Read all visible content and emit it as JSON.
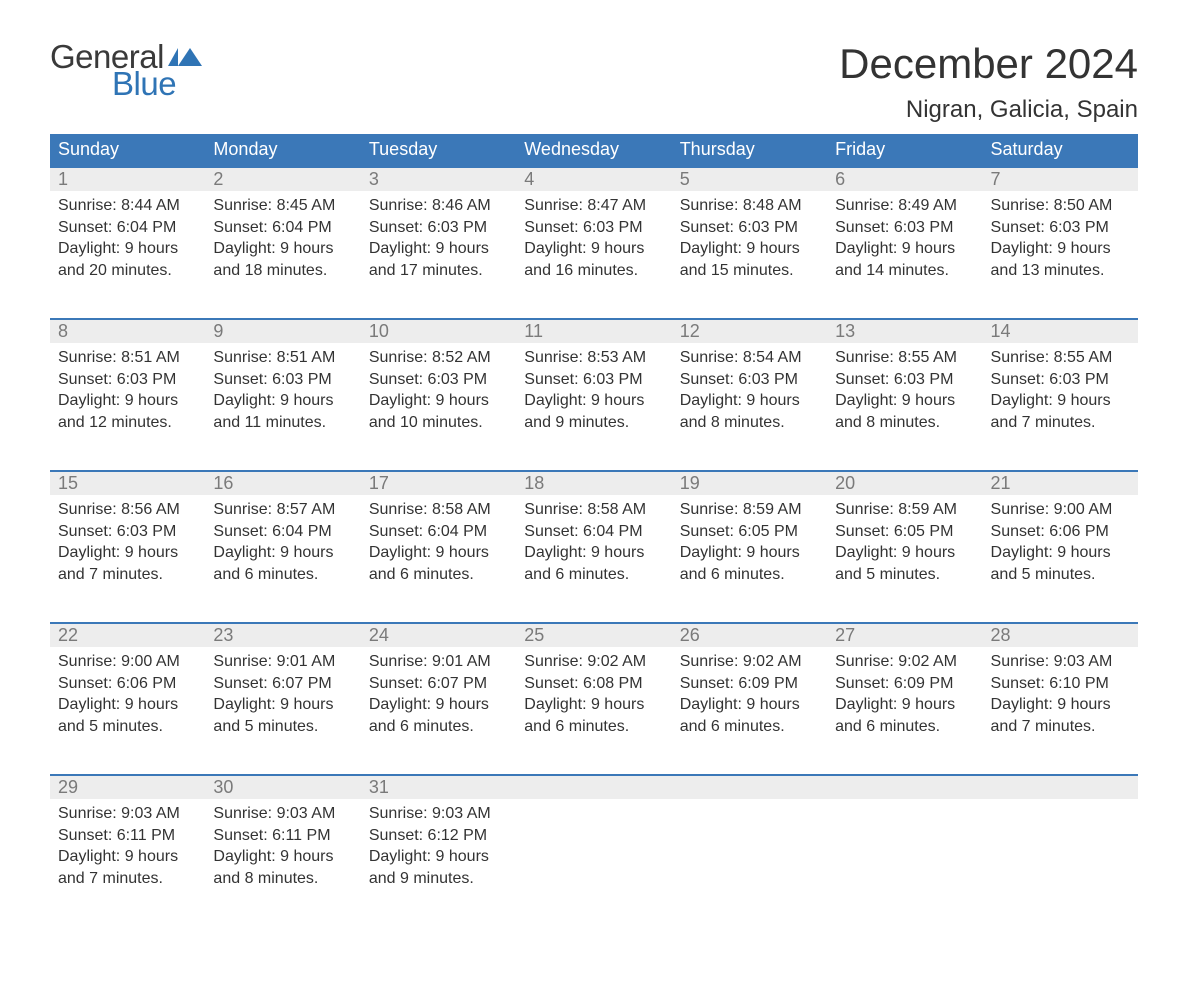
{
  "logo": {
    "general": "General",
    "blue": "Blue",
    "flag_color": "#2f74b5"
  },
  "title": {
    "month": "December 2024",
    "location": "Nigran, Galicia, Spain"
  },
  "colors": {
    "header_bg": "#3b78b8",
    "header_text": "#ffffff",
    "daynum_bg": "#ededed",
    "daynum_text": "#7a7a7a",
    "body_text": "#333333",
    "row_border": "#3b78b8",
    "page_bg": "#ffffff"
  },
  "weekdays": [
    "Sunday",
    "Monday",
    "Tuesday",
    "Wednesday",
    "Thursday",
    "Friday",
    "Saturday"
  ],
  "weeks": [
    [
      {
        "num": "1",
        "sunrise": "Sunrise: 8:44 AM",
        "sunset": "Sunset: 6:04 PM",
        "day1": "Daylight: 9 hours",
        "day2": "and 20 minutes."
      },
      {
        "num": "2",
        "sunrise": "Sunrise: 8:45 AM",
        "sunset": "Sunset: 6:04 PM",
        "day1": "Daylight: 9 hours",
        "day2": "and 18 minutes."
      },
      {
        "num": "3",
        "sunrise": "Sunrise: 8:46 AM",
        "sunset": "Sunset: 6:03 PM",
        "day1": "Daylight: 9 hours",
        "day2": "and 17 minutes."
      },
      {
        "num": "4",
        "sunrise": "Sunrise: 8:47 AM",
        "sunset": "Sunset: 6:03 PM",
        "day1": "Daylight: 9 hours",
        "day2": "and 16 minutes."
      },
      {
        "num": "5",
        "sunrise": "Sunrise: 8:48 AM",
        "sunset": "Sunset: 6:03 PM",
        "day1": "Daylight: 9 hours",
        "day2": "and 15 minutes."
      },
      {
        "num": "6",
        "sunrise": "Sunrise: 8:49 AM",
        "sunset": "Sunset: 6:03 PM",
        "day1": "Daylight: 9 hours",
        "day2": "and 14 minutes."
      },
      {
        "num": "7",
        "sunrise": "Sunrise: 8:50 AM",
        "sunset": "Sunset: 6:03 PM",
        "day1": "Daylight: 9 hours",
        "day2": "and 13 minutes."
      }
    ],
    [
      {
        "num": "8",
        "sunrise": "Sunrise: 8:51 AM",
        "sunset": "Sunset: 6:03 PM",
        "day1": "Daylight: 9 hours",
        "day2": "and 12 minutes."
      },
      {
        "num": "9",
        "sunrise": "Sunrise: 8:51 AM",
        "sunset": "Sunset: 6:03 PM",
        "day1": "Daylight: 9 hours",
        "day2": "and 11 minutes."
      },
      {
        "num": "10",
        "sunrise": "Sunrise: 8:52 AM",
        "sunset": "Sunset: 6:03 PM",
        "day1": "Daylight: 9 hours",
        "day2": "and 10 minutes."
      },
      {
        "num": "11",
        "sunrise": "Sunrise: 8:53 AM",
        "sunset": "Sunset: 6:03 PM",
        "day1": "Daylight: 9 hours",
        "day2": "and 9 minutes."
      },
      {
        "num": "12",
        "sunrise": "Sunrise: 8:54 AM",
        "sunset": "Sunset: 6:03 PM",
        "day1": "Daylight: 9 hours",
        "day2": "and 8 minutes."
      },
      {
        "num": "13",
        "sunrise": "Sunrise: 8:55 AM",
        "sunset": "Sunset: 6:03 PM",
        "day1": "Daylight: 9 hours",
        "day2": "and 8 minutes."
      },
      {
        "num": "14",
        "sunrise": "Sunrise: 8:55 AM",
        "sunset": "Sunset: 6:03 PM",
        "day1": "Daylight: 9 hours",
        "day2": "and 7 minutes."
      }
    ],
    [
      {
        "num": "15",
        "sunrise": "Sunrise: 8:56 AM",
        "sunset": "Sunset: 6:03 PM",
        "day1": "Daylight: 9 hours",
        "day2": "and 7 minutes."
      },
      {
        "num": "16",
        "sunrise": "Sunrise: 8:57 AM",
        "sunset": "Sunset: 6:04 PM",
        "day1": "Daylight: 9 hours",
        "day2": "and 6 minutes."
      },
      {
        "num": "17",
        "sunrise": "Sunrise: 8:58 AM",
        "sunset": "Sunset: 6:04 PM",
        "day1": "Daylight: 9 hours",
        "day2": "and 6 minutes."
      },
      {
        "num": "18",
        "sunrise": "Sunrise: 8:58 AM",
        "sunset": "Sunset: 6:04 PM",
        "day1": "Daylight: 9 hours",
        "day2": "and 6 minutes."
      },
      {
        "num": "19",
        "sunrise": "Sunrise: 8:59 AM",
        "sunset": "Sunset: 6:05 PM",
        "day1": "Daylight: 9 hours",
        "day2": "and 6 minutes."
      },
      {
        "num": "20",
        "sunrise": "Sunrise: 8:59 AM",
        "sunset": "Sunset: 6:05 PM",
        "day1": "Daylight: 9 hours",
        "day2": "and 5 minutes."
      },
      {
        "num": "21",
        "sunrise": "Sunrise: 9:00 AM",
        "sunset": "Sunset: 6:06 PM",
        "day1": "Daylight: 9 hours",
        "day2": "and 5 minutes."
      }
    ],
    [
      {
        "num": "22",
        "sunrise": "Sunrise: 9:00 AM",
        "sunset": "Sunset: 6:06 PM",
        "day1": "Daylight: 9 hours",
        "day2": "and 5 minutes."
      },
      {
        "num": "23",
        "sunrise": "Sunrise: 9:01 AM",
        "sunset": "Sunset: 6:07 PM",
        "day1": "Daylight: 9 hours",
        "day2": "and 5 minutes."
      },
      {
        "num": "24",
        "sunrise": "Sunrise: 9:01 AM",
        "sunset": "Sunset: 6:07 PM",
        "day1": "Daylight: 9 hours",
        "day2": "and 6 minutes."
      },
      {
        "num": "25",
        "sunrise": "Sunrise: 9:02 AM",
        "sunset": "Sunset: 6:08 PM",
        "day1": "Daylight: 9 hours",
        "day2": "and 6 minutes."
      },
      {
        "num": "26",
        "sunrise": "Sunrise: 9:02 AM",
        "sunset": "Sunset: 6:09 PM",
        "day1": "Daylight: 9 hours",
        "day2": "and 6 minutes."
      },
      {
        "num": "27",
        "sunrise": "Sunrise: 9:02 AM",
        "sunset": "Sunset: 6:09 PM",
        "day1": "Daylight: 9 hours",
        "day2": "and 6 minutes."
      },
      {
        "num": "28",
        "sunrise": "Sunrise: 9:03 AM",
        "sunset": "Sunset: 6:10 PM",
        "day1": "Daylight: 9 hours",
        "day2": "and 7 minutes."
      }
    ],
    [
      {
        "num": "29",
        "sunrise": "Sunrise: 9:03 AM",
        "sunset": "Sunset: 6:11 PM",
        "day1": "Daylight: 9 hours",
        "day2": "and 7 minutes."
      },
      {
        "num": "30",
        "sunrise": "Sunrise: 9:03 AM",
        "sunset": "Sunset: 6:11 PM",
        "day1": "Daylight: 9 hours",
        "day2": "and 8 minutes."
      },
      {
        "num": "31",
        "sunrise": "Sunrise: 9:03 AM",
        "sunset": "Sunset: 6:12 PM",
        "day1": "Daylight: 9 hours",
        "day2": "and 9 minutes."
      },
      null,
      null,
      null,
      null
    ]
  ]
}
